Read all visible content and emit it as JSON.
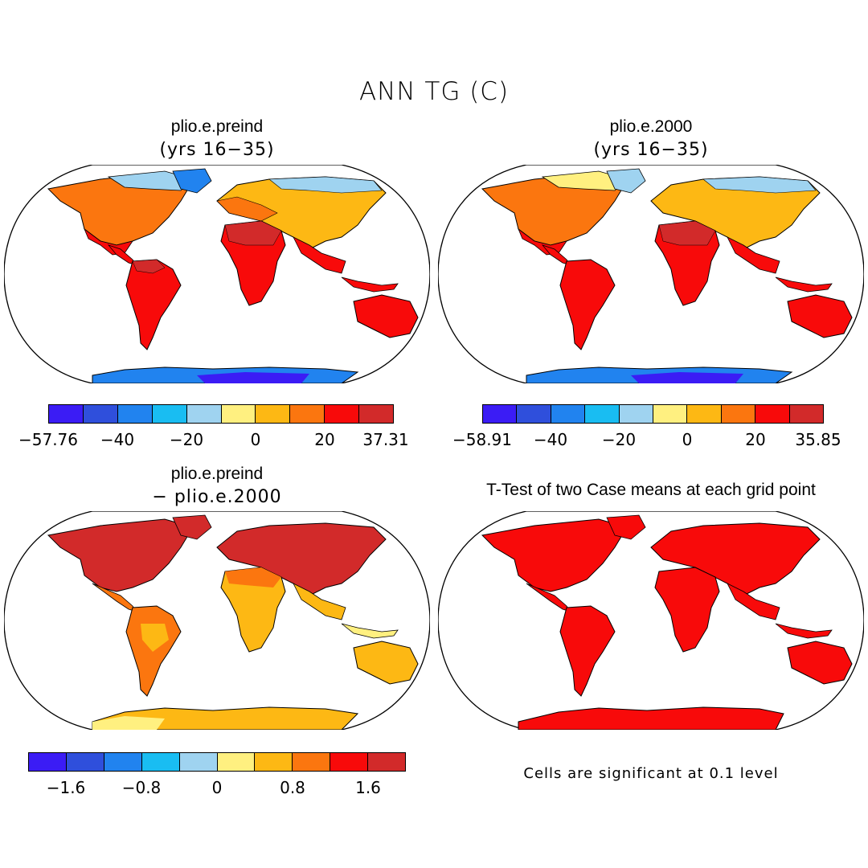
{
  "title": "ANN TG (C)",
  "panels": [
    {
      "title": "plio.e.preind",
      "subtitle": "(yrs 16−35)"
    },
    {
      "title": "plio.e.2000",
      "subtitle": "(yrs 16−35)"
    },
    {
      "title": "plio.e.preind",
      "subtitle": "− plio.e.2000"
    },
    {
      "title": "T-Test of two Case means at each grid point",
      "subtitle": ""
    }
  ],
  "colorbars": [
    {
      "colors": [
        "#3b1cf5",
        "#2f4fdc",
        "#2183ef",
        "#19bdf2",
        "#9fd3f0",
        "#fff080",
        "#fdb814",
        "#fb760f",
        "#f80a0a",
        "#d22a2a"
      ],
      "ticks": [
        "−57.76",
        "−40",
        "−20",
        "0",
        "20",
        "37.31"
      ]
    },
    {
      "colors": [
        "#3b1cf5",
        "#2f4fdc",
        "#2183ef",
        "#19bdf2",
        "#9fd3f0",
        "#fff080",
        "#fdb814",
        "#fb760f",
        "#f80a0a",
        "#d22a2a"
      ],
      "ticks": [
        "−58.91",
        "−40",
        "−20",
        "0",
        "20",
        "35.85"
      ]
    },
    {
      "colors": [
        "#3b1cf5",
        "#2f4fdc",
        "#2183ef",
        "#19bdf2",
        "#9fd3f0",
        "#fff080",
        "#fdb814",
        "#fb760f",
        "#f80a0a",
        "#d22a2a"
      ],
      "ticks": [
        "−1.6",
        "−0.8",
        "0",
        "0.8",
        "1.6"
      ]
    }
  ],
  "significance_note": "Cells are significant at 0.1 level",
  "fill_colors": {
    "hot": "#d22a2a",
    "red": "#f80a0a",
    "orange": "#fb760f",
    "amber": "#fdb814",
    "yellow": "#fff080",
    "lightblue": "#9fd3f0",
    "cyan": "#19bdf2",
    "blue": "#2183ef",
    "deepblue": "#2f4fdc",
    "violet": "#3b1cf5"
  }
}
